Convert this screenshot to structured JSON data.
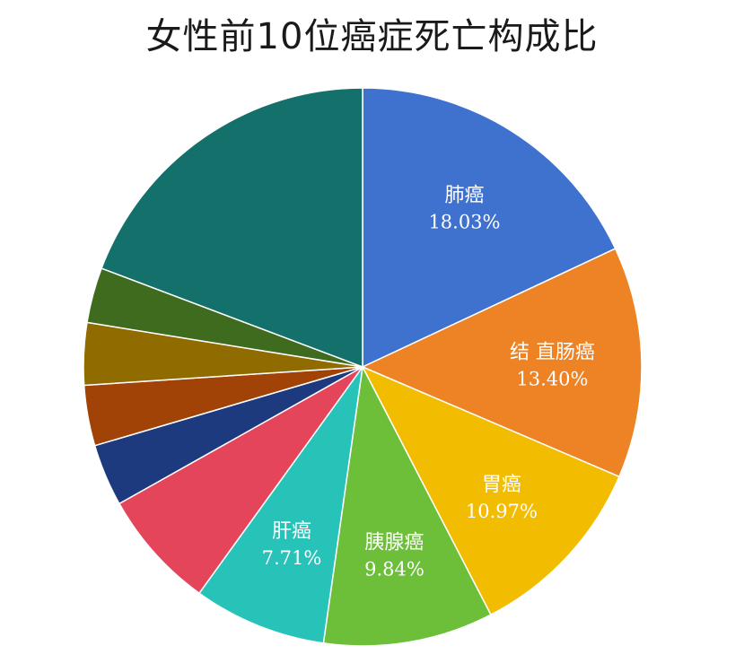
{
  "chart_data": {
    "type": "pie",
    "title": "女性前10位癌症死亡构成比",
    "slices": [
      {
        "label": "肺癌",
        "value_text": "18.03%",
        "value": 18.03,
        "color": "#3F72CF"
      },
      {
        "label": "结 直肠癌",
        "value_text": "13.40%",
        "value": 13.4,
        "color": "#EE8325"
      },
      {
        "label": "胃癌",
        "value_text": "10.97%",
        "value": 10.97,
        "color": "#F2BD00"
      },
      {
        "label": "胰腺癌",
        "value_text": "9.84%",
        "value": 9.84,
        "color": "#6DBF3A"
      },
      {
        "label": "肝癌",
        "value_text": "7.71%",
        "value": 7.71,
        "color": "#27C3B9"
      },
      {
        "label": "",
        "value_text": "",
        "value": 6.9,
        "color": "#E5455A"
      },
      {
        "label": "",
        "value_text": "",
        "value": 3.6,
        "color": "#1D3A7E"
      },
      {
        "label": "",
        "value_text": "",
        "value": 3.5,
        "color": "#A14306"
      },
      {
        "label": "",
        "value_text": "",
        "value": 3.6,
        "color": "#8F6B00"
      },
      {
        "label": "",
        "value_text": "",
        "value": 3.2,
        "color": "#3F6B1E"
      },
      {
        "label": "",
        "value_text": "",
        "value": 19.25,
        "color": "#13706A"
      }
    ],
    "start_angle_deg": 0,
    "direction": "clockwise",
    "slice_border_color": "#ffffff",
    "legend": "none"
  }
}
